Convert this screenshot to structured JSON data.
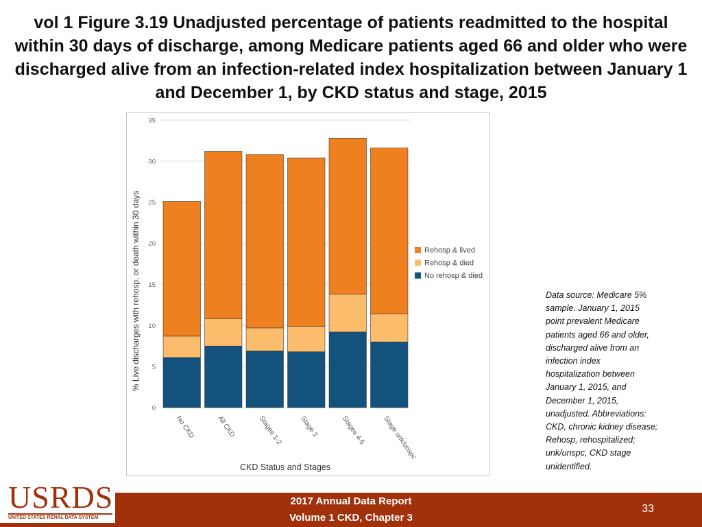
{
  "title": "vol 1 Figure 3.19 Unadjusted percentage of patients readmitted to the hospital within 30 days of discharge, among Medicare patients aged 66 and older who were discharged alive from an infection-related index hospitalization between January 1 and December 1, by CKD status and stage, 2015",
  "chart_data": {
    "type": "bar",
    "stacked": true,
    "categories": [
      "No CKD",
      "All CKD",
      "Stages 1-2",
      "Stage 3",
      "Stages 4-5",
      "Stage unk/unspc"
    ],
    "series": [
      {
        "name": "No rehosp & died",
        "color": "#12527c",
        "values": [
          6.1,
          7.5,
          6.9,
          6.8,
          9.2,
          8.0
        ]
      },
      {
        "name": "Rehosp & died",
        "color": "#fbbd6b",
        "values": [
          2.6,
          3.3,
          2.8,
          3.1,
          4.6,
          3.4
        ]
      },
      {
        "name": "Rehosp & lived",
        "color": "#ee8020",
        "values": [
          16.4,
          20.4,
          21.1,
          20.5,
          19.0,
          20.2
        ]
      }
    ],
    "xlabel": "CKD Status and Stages",
    "ylabel": "% Live discharges with rehosp. or death within 30 days",
    "ylim": [
      0,
      35
    ],
    "yticks": [
      0,
      5,
      10,
      15,
      20,
      25,
      30,
      35
    ],
    "grid": true,
    "legend_position": "right"
  },
  "note": {
    "line1": "Data source: Medicare 5%",
    "line2": "sample. January 1, 2015",
    "line3": "point prevalent Medicare",
    "line4": "patients aged 66 and older,",
    "line5": "discharged alive from an",
    "line6": "infection index",
    "line7": "hospitalization between",
    "line8": "January 1, 2015, and",
    "line9": "December 1, 2015,",
    "line10": "unadjusted. Abbreviations:",
    "line11": "CKD, chronic kidney disease;",
    "line12": "Rehosp, rehospitalized;",
    "line13": "unk/unspc, CKD stage",
    "line14": "unidentified."
  },
  "footer": {
    "line1": "2017 Annual Data Report",
    "line2": "Volume 1 CKD, Chapter 3",
    "page_number": "33"
  },
  "logo": {
    "text": "USRDS",
    "subtitle": "UNITED STATES RENAL DATA SYSTEM"
  }
}
